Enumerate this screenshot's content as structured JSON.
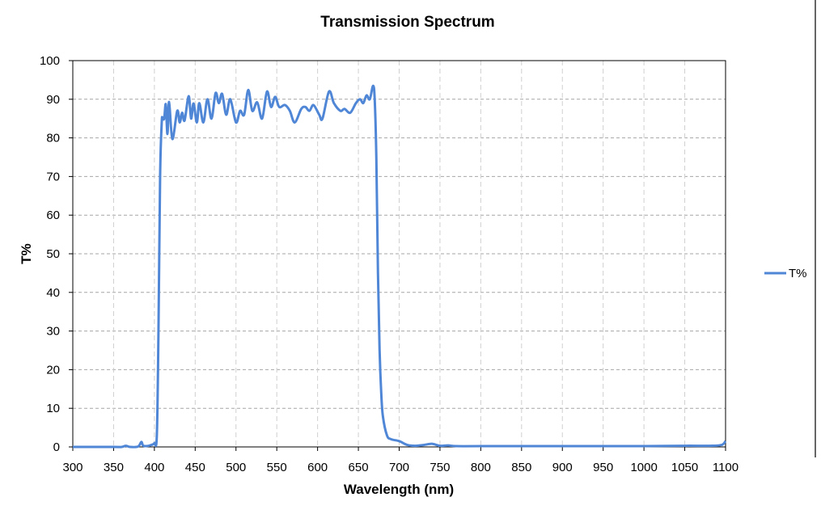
{
  "chart_data": {
    "type": "line",
    "title": "Transmission Spectrum",
    "xlabel": "Wavelength (nm)",
    "ylabel": "T%",
    "xlim": [
      300,
      1100
    ],
    "ylim": [
      0,
      100
    ],
    "xticks": [
      300,
      350,
      400,
      450,
      500,
      550,
      600,
      650,
      700,
      750,
      800,
      850,
      900,
      950,
      1000,
      1050,
      1100
    ],
    "yticks": [
      0,
      10,
      20,
      30,
      40,
      50,
      60,
      70,
      80,
      90,
      100
    ],
    "grid": true,
    "legend": "right",
    "series": [
      {
        "name": "T%",
        "color": "#4F86D6",
        "x": [
          300,
          350,
          360,
          365,
          370,
          380,
          384,
          386,
          390,
          396,
          400,
          403,
          405,
          407,
          409,
          410,
          412,
          414,
          416,
          418,
          422,
          428,
          431,
          434,
          437,
          442,
          445,
          448,
          452,
          455,
          460,
          465,
          470,
          475,
          479,
          483,
          488,
          493,
          500,
          505,
          510,
          515,
          520,
          526,
          532,
          538,
          543,
          548,
          553,
          560,
          566,
          572,
          580,
          585,
          590,
          595,
          602,
          606,
          614,
          620,
          628,
          633,
          640,
          647,
          652,
          656,
          660,
          664,
          668,
          670,
          672,
          674,
          676,
          678,
          680,
          685,
          690,
          700,
          710,
          720,
          730,
          740,
          750,
          760,
          770,
          800,
          900,
          1000,
          1050,
          1080,
          1095,
          1100
        ],
        "y": [
          0,
          0,
          0,
          0.3,
          0,
          0.1,
          1.3,
          0.4,
          0.2,
          0.5,
          1,
          3,
          30,
          70,
          84,
          85,
          85,
          88.7,
          81,
          89.3,
          79.7,
          87,
          84,
          86.5,
          84.5,
          90.8,
          85,
          88.9,
          84,
          89,
          84,
          90,
          85,
          91.6,
          89,
          91.4,
          86,
          90,
          84,
          87,
          86,
          92.4,
          87,
          89.2,
          85,
          92,
          88,
          90.6,
          88,
          88.5,
          87,
          84,
          87.5,
          88,
          87,
          88.5,
          86,
          85,
          92,
          89,
          87,
          87.5,
          86.5,
          89,
          90,
          89,
          91,
          90,
          93.5,
          90,
          75,
          45,
          25,
          14,
          8,
          3,
          2,
          1.5,
          0.5,
          0.3,
          0.5,
          0.8,
          0.3,
          0.4,
          0.2,
          0.2,
          0.2,
          0.2,
          0.3,
          0.3,
          0.5,
          1.5
        ]
      }
    ]
  }
}
